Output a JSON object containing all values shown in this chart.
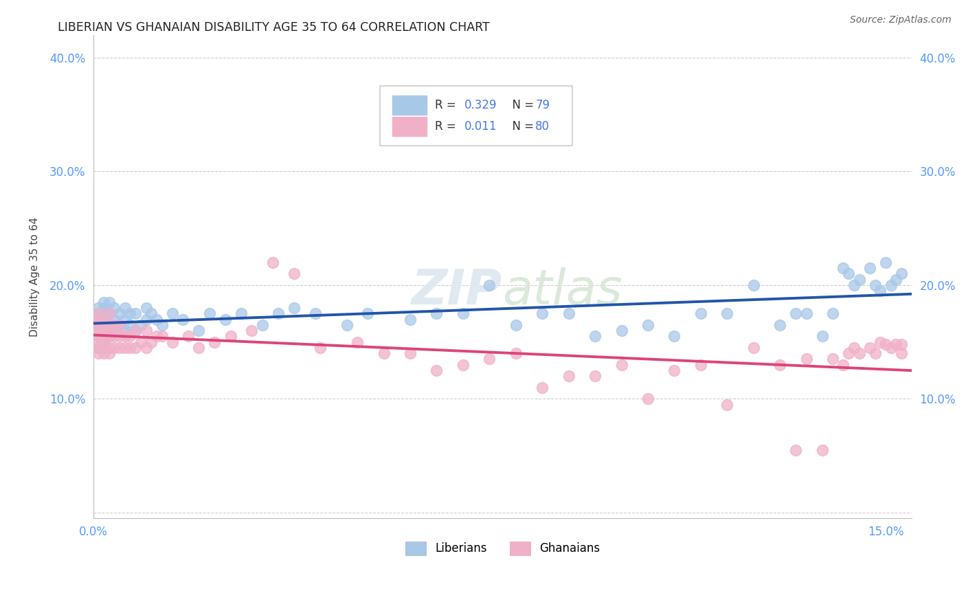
{
  "title": "LIBERIAN VS GHANAIAN DISABILITY AGE 35 TO 64 CORRELATION CHART",
  "source": "Source: ZipAtlas.com",
  "ylabel": "Disability Age 35 to 64",
  "xlim": [
    0.0,
    0.155
  ],
  "ylim": [
    -0.005,
    0.42
  ],
  "background_color": "#ffffff",
  "liberian_color": "#a8c8e8",
  "ghanaian_color": "#f0b0c8",
  "liberian_line_color": "#2255aa",
  "ghanaian_line_color": "#dd4477",
  "legend_text_color": "#4477ee",
  "legend_r1": "R = 0.329",
  "legend_n1": "N = 79",
  "legend_r2": "R = 0.011",
  "legend_n2": "N = 80",
  "tick_color": "#5599ff",
  "grid_color": "#cccccc",
  "watermark": "ZIPatlas",
  "liberian_x": [
    0.001,
    0.001,
    0.001,
    0.001,
    0.001,
    0.001,
    0.001,
    0.002,
    0.002,
    0.002,
    0.002,
    0.002,
    0.002,
    0.002,
    0.002,
    0.003,
    0.003,
    0.003,
    0.003,
    0.004,
    0.004,
    0.004,
    0.005,
    0.005,
    0.006,
    0.006,
    0.006,
    0.007,
    0.007,
    0.008,
    0.008,
    0.009,
    0.01,
    0.01,
    0.011,
    0.012,
    0.013,
    0.015,
    0.017,
    0.02,
    0.022,
    0.025,
    0.028,
    0.032,
    0.035,
    0.038,
    0.042,
    0.048,
    0.052,
    0.06,
    0.065,
    0.07,
    0.075,
    0.08,
    0.085,
    0.09,
    0.095,
    0.1,
    0.105,
    0.11,
    0.115,
    0.12,
    0.125,
    0.13,
    0.133,
    0.135,
    0.138,
    0.14,
    0.142,
    0.143,
    0.144,
    0.145,
    0.147,
    0.148,
    0.149,
    0.15,
    0.151,
    0.152,
    0.153
  ],
  "liberian_y": [
    0.155,
    0.16,
    0.165,
    0.17,
    0.175,
    0.18,
    0.145,
    0.15,
    0.155,
    0.16,
    0.165,
    0.17,
    0.175,
    0.18,
    0.185,
    0.155,
    0.165,
    0.175,
    0.185,
    0.16,
    0.17,
    0.18,
    0.165,
    0.175,
    0.16,
    0.17,
    0.18,
    0.165,
    0.175,
    0.16,
    0.175,
    0.165,
    0.17,
    0.18,
    0.175,
    0.17,
    0.165,
    0.175,
    0.17,
    0.16,
    0.175,
    0.17,
    0.175,
    0.165,
    0.175,
    0.18,
    0.175,
    0.165,
    0.175,
    0.17,
    0.175,
    0.175,
    0.2,
    0.165,
    0.175,
    0.175,
    0.155,
    0.16,
    0.165,
    0.155,
    0.175,
    0.175,
    0.2,
    0.165,
    0.175,
    0.175,
    0.155,
    0.175,
    0.215,
    0.21,
    0.2,
    0.205,
    0.215,
    0.2,
    0.195,
    0.22,
    0.2,
    0.205,
    0.21
  ],
  "ghanaian_x": [
    0.001,
    0.001,
    0.001,
    0.001,
    0.001,
    0.001,
    0.001,
    0.001,
    0.002,
    0.002,
    0.002,
    0.002,
    0.002,
    0.002,
    0.002,
    0.003,
    0.003,
    0.003,
    0.003,
    0.003,
    0.004,
    0.004,
    0.004,
    0.005,
    0.005,
    0.005,
    0.006,
    0.006,
    0.007,
    0.007,
    0.008,
    0.008,
    0.009,
    0.01,
    0.01,
    0.011,
    0.012,
    0.013,
    0.015,
    0.018,
    0.02,
    0.023,
    0.026,
    0.03,
    0.034,
    0.038,
    0.043,
    0.05,
    0.055,
    0.06,
    0.065,
    0.07,
    0.075,
    0.08,
    0.085,
    0.09,
    0.095,
    0.1,
    0.105,
    0.11,
    0.115,
    0.12,
    0.125,
    0.13,
    0.133,
    0.135,
    0.138,
    0.14,
    0.142,
    0.143,
    0.144,
    0.145,
    0.147,
    0.148,
    0.149,
    0.15,
    0.151,
    0.152,
    0.153,
    0.153
  ],
  "ghanaian_y": [
    0.14,
    0.145,
    0.15,
    0.155,
    0.16,
    0.165,
    0.17,
    0.175,
    0.14,
    0.145,
    0.15,
    0.155,
    0.16,
    0.165,
    0.17,
    0.14,
    0.145,
    0.155,
    0.165,
    0.175,
    0.145,
    0.155,
    0.165,
    0.145,
    0.155,
    0.165,
    0.145,
    0.155,
    0.145,
    0.155,
    0.145,
    0.16,
    0.15,
    0.145,
    0.16,
    0.15,
    0.155,
    0.155,
    0.15,
    0.155,
    0.145,
    0.15,
    0.155,
    0.16,
    0.22,
    0.21,
    0.145,
    0.15,
    0.14,
    0.14,
    0.125,
    0.13,
    0.135,
    0.14,
    0.11,
    0.12,
    0.12,
    0.13,
    0.1,
    0.125,
    0.13,
    0.095,
    0.145,
    0.13,
    0.055,
    0.135,
    0.055,
    0.135,
    0.13,
    0.14,
    0.145,
    0.14,
    0.145,
    0.14,
    0.15,
    0.148,
    0.145,
    0.148,
    0.14,
    0.148
  ]
}
